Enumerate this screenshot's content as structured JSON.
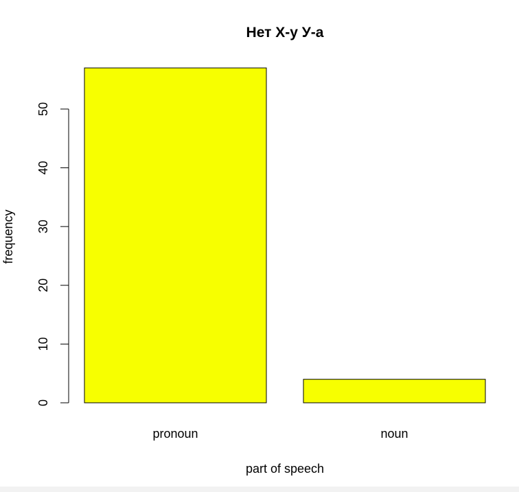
{
  "chart_data": {
    "type": "bar",
    "title": "Нет Х-у У-а",
    "xlabel": "part of speech",
    "ylabel": "frequency",
    "categories": [
      "pronoun",
      "noun"
    ],
    "values": [
      57,
      4
    ],
    "ylim": [
      0,
      57
    ],
    "yticks": [
      0,
      10,
      20,
      30,
      40,
      50
    ],
    "grid": false,
    "colors": {
      "bar_fill": "#f7ff00",
      "bar_stroke": "#000000"
    }
  }
}
